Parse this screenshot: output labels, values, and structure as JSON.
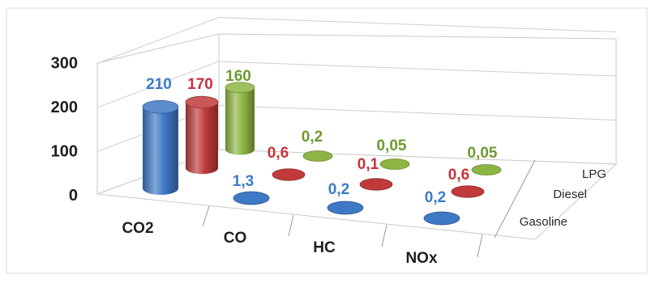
{
  "chart_data": {
    "type": "bar",
    "style": "3d-cylinder",
    "categories": [
      "CO2",
      "CO",
      "HC",
      "NOx"
    ],
    "series": [
      {
        "name": "Gasoline",
        "values": [
          210,
          1.3,
          0.2,
          0.2
        ],
        "labels": [
          "210",
          "1,3",
          "0,2",
          "0,2"
        ],
        "color": "#3f78c4",
        "label_color": "#3b7bc8"
      },
      {
        "name": "Diesel",
        "values": [
          170,
          0.6,
          0.1,
          0.6
        ],
        "labels": [
          "170",
          "0,6",
          "0,1",
          "0,6"
        ],
        "color": "#c03a3a",
        "label_color": "#c8323a"
      },
      {
        "name": "LPG",
        "values": [
          160,
          0.2,
          0.05,
          0.05
        ],
        "labels": [
          "160",
          "0,2",
          "0,05",
          "0,05"
        ],
        "color": "#8db543",
        "label_color": "#6e9a2f"
      }
    ],
    "y_ticks": [
      "0",
      "100",
      "200",
      "300"
    ],
    "ylim": [
      0,
      300
    ],
    "grid": true,
    "legend": "depth-axis-right"
  }
}
